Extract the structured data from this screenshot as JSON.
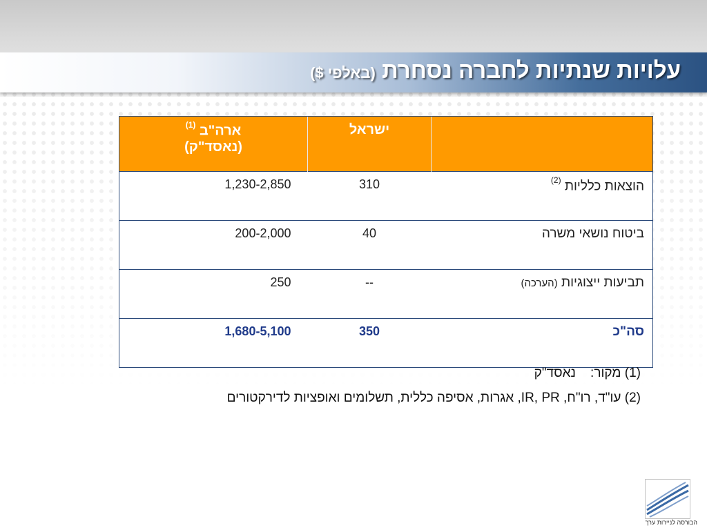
{
  "slide": {
    "title_main": "עלויות שנתיות לחברה נסחרת",
    "title_paren": "(באלפי $)"
  },
  "table": {
    "headers": {
      "label": "",
      "israel": "ישראל",
      "us_line1": "ארה\"ב",
      "us_note": "(1)",
      "us_line2": "(נאסד\"ק)"
    },
    "rows": [
      {
        "label": "הוצאות כלליות",
        "note": "(2)",
        "israel": "310",
        "us": "1,230-2,850"
      },
      {
        "label": "ביטוח נושאי משרה",
        "israel": "40",
        "us": "200-2,000"
      },
      {
        "label": "תביעות ייצוגיות",
        "label_small": "(הערכה)",
        "israel": "--",
        "us": "250"
      }
    ],
    "total": {
      "label": "סה\"כ",
      "israel": "350",
      "us": "1,680-5,100"
    }
  },
  "notes": [
    {
      "number": "(1)",
      "text": "מקור:    נאסד\"ק"
    },
    {
      "number": "(2)",
      "text": "עו\"ד, רו\"ח, IR, PR, אגרות, אסיפה כללית, תשלומים ואופציות לדירקטורים"
    }
  ],
  "logo": {
    "caption": "הבורסה לניירות ערך",
    "icon": "tase-logo-icon"
  },
  "colors": {
    "header_orange": "#ff9a00",
    "title_blue": "#2b5282",
    "total_text": "#1f3a8a"
  }
}
